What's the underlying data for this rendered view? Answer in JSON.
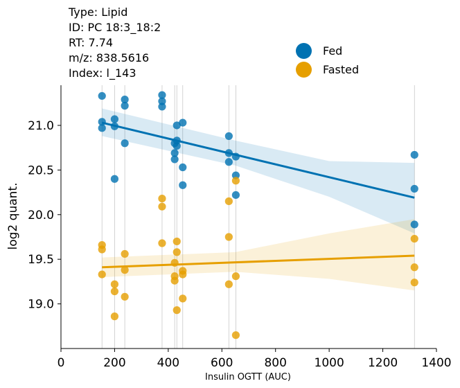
{
  "info": [
    "Type: Lipid",
    "ID: PC 18:3_18:2",
    "RT: 7.74",
    "m/z: 838.5616",
    "Index: l_143"
  ],
  "colors": {
    "fed": "#0072b2",
    "fasted": "#e69f00"
  },
  "chart_data": {
    "type": "scatter",
    "xlabel": "Insulin OGTT (AUC)",
    "ylabel": "log2 quant.",
    "xlim": [
      0,
      1400
    ],
    "ylim": [
      18.5,
      21.45
    ],
    "xticks": [
      "0",
      "200",
      "400",
      "600",
      "800",
      "1000",
      "1200",
      "1400"
    ],
    "yticks": [
      "19.0",
      "19.5",
      "20.0",
      "20.5",
      "21.0"
    ],
    "legend_position": "top-right",
    "vertical_guides": [
      153,
      200,
      238,
      377,
      424,
      432,
      454,
      626,
      652,
      1318
    ],
    "series": [
      {
        "name": "Fed",
        "points": [
          [
            153,
            21.33
          ],
          [
            153,
            21.04
          ],
          [
            153,
            20.97
          ],
          [
            200,
            21.07
          ],
          [
            200,
            20.99
          ],
          [
            200,
            20.4
          ],
          [
            238,
            21.29
          ],
          [
            238,
            21.22
          ],
          [
            238,
            20.8
          ],
          [
            377,
            21.34
          ],
          [
            377,
            21.27
          ],
          [
            377,
            21.21
          ],
          [
            424,
            20.8
          ],
          [
            424,
            20.69
          ],
          [
            424,
            20.62
          ],
          [
            432,
            21.0
          ],
          [
            432,
            20.83
          ],
          [
            432,
            20.77
          ],
          [
            454,
            21.03
          ],
          [
            454,
            20.53
          ],
          [
            454,
            20.33
          ],
          [
            626,
            20.88
          ],
          [
            626,
            20.69
          ],
          [
            626,
            20.59
          ],
          [
            652,
            20.65
          ],
          [
            652,
            20.44
          ],
          [
            652,
            20.22
          ],
          [
            1318,
            20.67
          ],
          [
            1318,
            20.29
          ],
          [
            1318,
            19.89
          ]
        ],
        "fit": {
          "x": [
            153,
            1318
          ],
          "y": [
            21.03,
            20.19
          ]
        },
        "ci_upper": [
          [
            153,
            21.19
          ],
          [
            650,
            20.83
          ],
          [
            1000,
            20.6
          ],
          [
            1318,
            20.58
          ]
        ],
        "ci_lower": [
          [
            153,
            20.88
          ],
          [
            650,
            20.55
          ],
          [
            1000,
            20.2
          ],
          [
            1318,
            19.79
          ]
        ]
      },
      {
        "name": "Fasted",
        "points": [
          [
            153,
            19.66
          ],
          [
            153,
            19.61
          ],
          [
            153,
            19.33
          ],
          [
            200,
            19.22
          ],
          [
            200,
            19.14
          ],
          [
            200,
            18.86
          ],
          [
            238,
            19.56
          ],
          [
            238,
            19.38
          ],
          [
            238,
            19.08
          ],
          [
            377,
            20.18
          ],
          [
            377,
            20.09
          ],
          [
            377,
            19.68
          ],
          [
            424,
            19.46
          ],
          [
            424,
            19.31
          ],
          [
            424,
            19.26
          ],
          [
            432,
            19.7
          ],
          [
            432,
            19.58
          ],
          [
            432,
            18.93
          ],
          [
            454,
            19.37
          ],
          [
            454,
            19.33
          ],
          [
            454,
            19.06
          ],
          [
            626,
            20.15
          ],
          [
            626,
            19.75
          ],
          [
            626,
            19.22
          ],
          [
            652,
            20.38
          ],
          [
            652,
            19.31
          ],
          [
            652,
            18.65
          ],
          [
            1318,
            19.73
          ],
          [
            1318,
            19.41
          ],
          [
            1318,
            19.24
          ]
        ],
        "fit": {
          "x": [
            153,
            1318
          ],
          "y": [
            19.41,
            19.54
          ]
        },
        "ci_upper": [
          [
            153,
            19.52
          ],
          [
            650,
            19.58
          ],
          [
            1000,
            19.79
          ],
          [
            1318,
            19.95
          ]
        ],
        "ci_lower": [
          [
            153,
            19.3
          ],
          [
            650,
            19.36
          ],
          [
            1000,
            19.28
          ],
          [
            1318,
            19.15
          ]
        ]
      }
    ]
  }
}
